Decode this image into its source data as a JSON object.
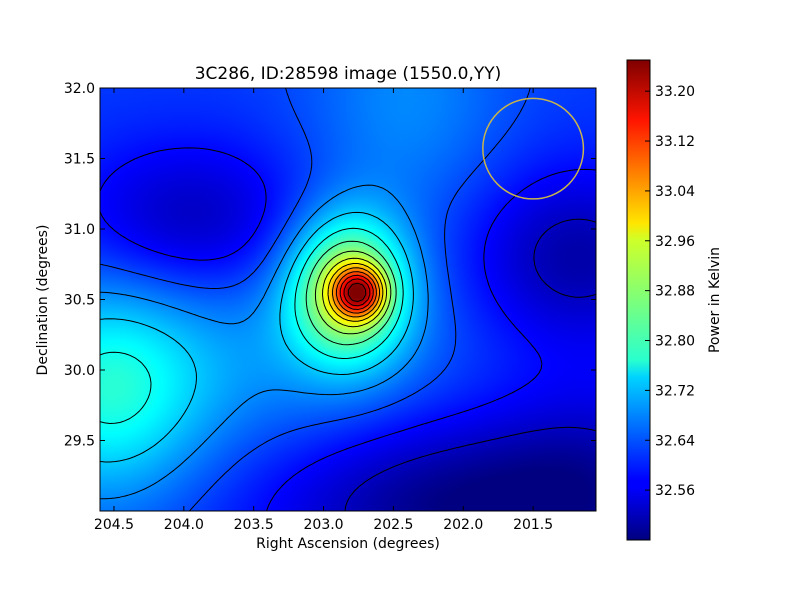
{
  "chart_data": {
    "type": "heatmap",
    "title": "3C286, ID:28598 image (1550.0,YY)",
    "xlabel": "Right Ascension (degrees)",
    "ylabel": "Declination (degrees)",
    "colorbar_label": "Power in Kelvin",
    "colormap": "jet",
    "x_range": [
      204.6,
      201.05
    ],
    "y_range": [
      29.0,
      32.0
    ],
    "x_ticks": [
      "204.5",
      "204.0",
      "203.5",
      "203.0",
      "202.5",
      "202.0",
      "201.5"
    ],
    "x_tick_values": [
      204.5,
      204.0,
      203.5,
      203.0,
      202.5,
      202.0,
      201.5
    ],
    "y_ticks": [
      "29.5",
      "30.0",
      "30.5",
      "31.0",
      "31.5",
      "32.0"
    ],
    "y_tick_values": [
      29.5,
      30.0,
      30.5,
      31.0,
      31.5,
      32.0
    ],
    "color_range": [
      32.48,
      33.25
    ],
    "colorbar_ticks": [
      "32.56",
      "32.64",
      "32.72",
      "32.80",
      "32.88",
      "32.96",
      "33.04",
      "33.12",
      "33.20"
    ],
    "colorbar_tick_values": [
      32.56,
      32.64,
      32.72,
      32.8,
      32.88,
      32.96,
      33.04,
      33.12,
      33.2
    ],
    "peak": {
      "ra": 202.75,
      "dec": 30.55,
      "value": 33.24
    },
    "beam_circle": {
      "ra": 201.5,
      "dec": 31.57,
      "radius_deg": 0.36,
      "color": "#c8b44c"
    },
    "contour_levels": [
      32.53,
      32.58,
      32.63,
      32.68,
      32.73,
      32.78,
      32.83,
      32.88,
      32.93,
      32.98,
      33.03,
      33.08,
      33.13,
      33.18,
      33.23
    ]
  }
}
